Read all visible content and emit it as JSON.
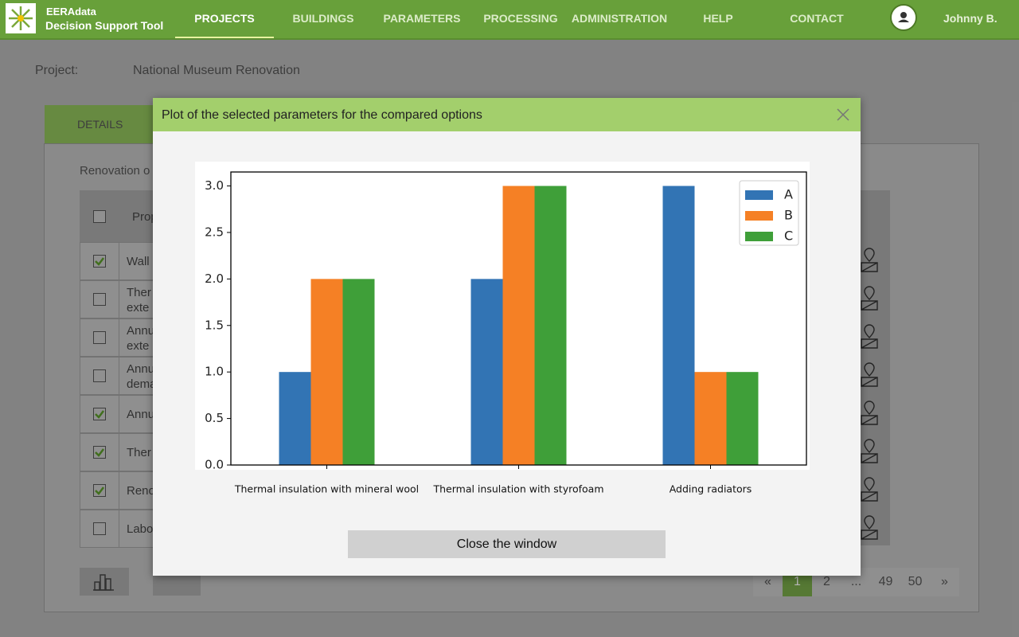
{
  "header": {
    "brand": "EERAdata",
    "subtitle": "Decision Support Tool",
    "nav": [
      "PROJECTS",
      "BUILDINGS",
      "PARAMETERS",
      "PROCESSING",
      "ADMINISTRATION",
      "HELP",
      "CONTACT"
    ],
    "user": "Johnny B."
  },
  "project": {
    "label": "Project:",
    "name": "National Museum Renovation",
    "tab": "DETAILS",
    "section": "Renovation o"
  },
  "table": {
    "header": "Prop",
    "rows": [
      {
        "text": "Wall",
        "checked": true
      },
      {
        "text": "Ther\nexte",
        "checked": false
      },
      {
        "text": "Annu\nexte",
        "checked": false
      },
      {
        "text": "Annu\ndema",
        "checked": false
      },
      {
        "text": "Annu",
        "checked": true
      },
      {
        "text": "Ther",
        "checked": true
      },
      {
        "text": "Reno",
        "checked": true
      },
      {
        "text": "Labo",
        "checked": false
      }
    ]
  },
  "pagination": [
    "«",
    "1",
    "2",
    "...",
    "49",
    "50",
    "»"
  ],
  "modal": {
    "title": "Plot of the selected parameters for the compared options",
    "button": "Close the window"
  },
  "chart_data": {
    "type": "bar",
    "categories": [
      "Thermal insulation with mineral wool",
      "Thermal insulation with styrofoam",
      "Adding radiators"
    ],
    "series": [
      {
        "name": "A",
        "color": "#3274b4",
        "values": [
          1,
          2,
          3
        ]
      },
      {
        "name": "B",
        "color": "#f58025",
        "values": [
          2,
          3,
          1
        ]
      },
      {
        "name": "C",
        "color": "#3f9f39",
        "values": [
          2,
          3,
          1
        ]
      }
    ],
    "ylim": [
      0,
      3.15
    ],
    "yticks": [
      {
        "value": 0,
        "label": "0.0"
      },
      0.5,
      {
        "value": 1,
        "label": "1.0"
      },
      1.5,
      {
        "value": 2,
        "label": "2.0"
      },
      2.5,
      {
        "value": 3,
        "label": "3.0"
      }
    ],
    "legend": "upper right"
  }
}
